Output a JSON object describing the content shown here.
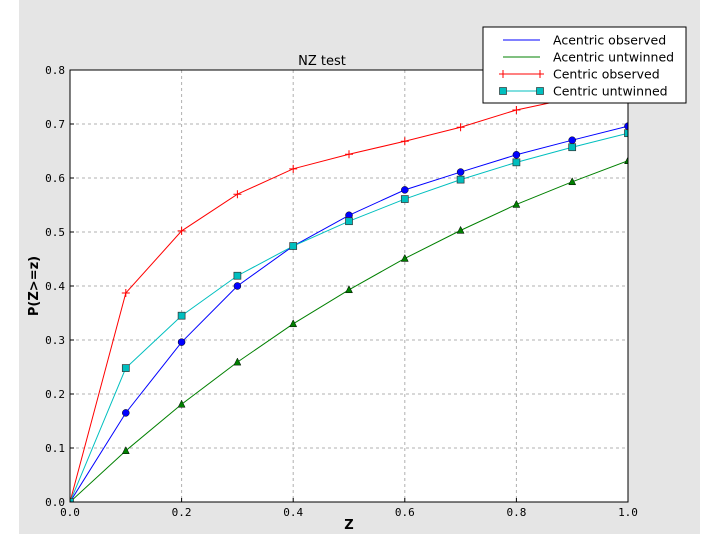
{
  "chart_data": {
    "type": "line",
    "title": "NZ test",
    "xlabel": "Z",
    "ylabel": "P(Z>=z)",
    "xlim": [
      0.0,
      1.0
    ],
    "ylim": [
      0.0,
      0.8
    ],
    "xticks": [
      "0.0",
      "0.2",
      "0.4",
      "0.6",
      "0.8",
      "1.0"
    ],
    "yticks": [
      "0.0",
      "0.1",
      "0.2",
      "0.3",
      "0.4",
      "0.5",
      "0.6",
      "0.7",
      "0.8"
    ],
    "grid": true,
    "legend_position": "top-right",
    "x": [
      0.0,
      0.1,
      0.2,
      0.3,
      0.4,
      0.5,
      0.6,
      0.7,
      0.8,
      0.9,
      1.0
    ],
    "series": [
      {
        "name": "Acentric observed",
        "color": "#0000ff",
        "marker": "circle",
        "legend_marker": "none",
        "values": [
          0.0,
          0.165,
          0.296,
          0.4,
          0.474,
          0.531,
          0.578,
          0.611,
          0.643,
          0.67,
          0.696
        ]
      },
      {
        "name": "Acentric untwinned",
        "color": "#008000",
        "marker": "triangle",
        "legend_marker": "none",
        "values": [
          0.0,
          0.095,
          0.181,
          0.259,
          0.33,
          0.393,
          0.451,
          0.503,
          0.551,
          0.593,
          0.632
        ]
      },
      {
        "name": "Centric observed",
        "color": "#ff0000",
        "marker": "plus",
        "legend_marker": "plus",
        "values": [
          0.0,
          0.387,
          0.502,
          0.57,
          0.617,
          0.644,
          0.668,
          0.694,
          0.726,
          0.748,
          0.77
        ]
      },
      {
        "name": "Centric untwinned",
        "color": "#00bfbf",
        "marker": "square",
        "legend_marker": "square",
        "values": [
          0.0,
          0.248,
          0.345,
          0.419,
          0.474,
          0.52,
          0.561,
          0.597,
          0.629,
          0.657,
          0.683
        ]
      }
    ]
  }
}
